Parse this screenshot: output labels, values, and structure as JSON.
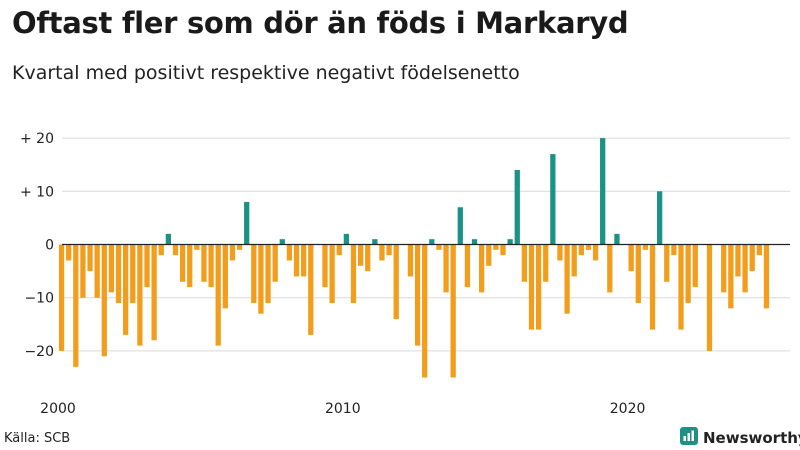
{
  "title": "Oftast fler som dör än föds i Markaryd",
  "subtitle": "Kvartal med positivt respektive negativt födelsenetto",
  "source": "Källa: SCB",
  "brand": "Newsworthy",
  "colors": {
    "positive": "#1a9386",
    "negative": "#f29d1c",
    "grid": "#d9d9d9",
    "zero": "#222222",
    "text": "#222222"
  },
  "icons": {
    "brand": "newsworthy-logo-icon"
  },
  "chart_data": {
    "type": "bar",
    "title": "Oftast fler som dör än föds i Markaryd",
    "subtitle": "Kvartal med positivt respektive negativt födelsenetto",
    "xlabel": "",
    "ylabel": "",
    "ylim": [
      -25,
      22
    ],
    "yticks": [
      {
        "value": 20,
        "label": "+ 20"
      },
      {
        "value": 10,
        "label": "+ 10"
      },
      {
        "value": 0,
        "label": "0"
      },
      {
        "value": -10,
        "label": "−10"
      },
      {
        "value": -20,
        "label": "−20"
      }
    ],
    "xticks": [
      {
        "value": 2000,
        "label": "2000"
      },
      {
        "value": 2010,
        "label": "2010"
      },
      {
        "value": 2020,
        "label": "2020"
      }
    ],
    "x_start": 2000,
    "periods_per_year": 4,
    "grid": true,
    "values": [
      -20,
      -3,
      -23,
      -10,
      -5,
      -10,
      -21,
      -9,
      -11,
      -17,
      -11,
      -19,
      -8,
      -18,
      -2,
      2,
      -2,
      -7,
      -8,
      -1,
      -7,
      -8,
      -19,
      -12,
      -3,
      -1,
      8,
      -11,
      -13,
      -11,
      -7,
      1,
      -3,
      -6,
      -6,
      -17,
      0,
      -8,
      -11,
      -2,
      2,
      -11,
      -4,
      -5,
      1,
      -3,
      -2,
      -14,
      0,
      -6,
      -19,
      -25,
      1,
      -1,
      -9,
      -25,
      7,
      -8,
      1,
      -9,
      -4,
      -1,
      -2,
      1,
      14,
      -7,
      -16,
      -16,
      -7,
      17,
      -3,
      -13,
      -6,
      -2,
      -1,
      -3,
      20,
      -9,
      2,
      0,
      -5,
      -11,
      -1,
      -16,
      10,
      -7,
      -2,
      -16,
      -11,
      -8,
      0,
      -20,
      0,
      -9,
      -12,
      -6,
      -9,
      -5,
      -2,
      -12
    ]
  }
}
